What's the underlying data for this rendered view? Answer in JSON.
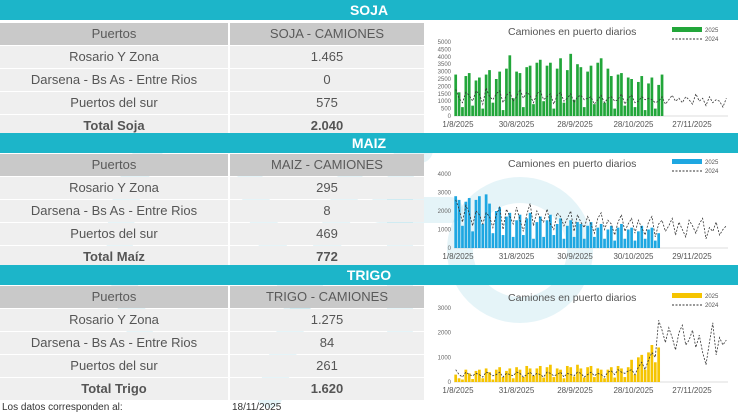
{
  "sections": [
    {
      "key": "soja",
      "banner": "SOJA",
      "header": {
        "col1": "Puertos",
        "col2": "SOJA - CAMIONES"
      },
      "rows": [
        {
          "label": "Rosario Y Zona",
          "value": "1.465"
        },
        {
          "label": "Darsena - Bs As - Entre Rios",
          "value": "0"
        },
        {
          "label": "Puertos del sur",
          "value": "575"
        }
      ],
      "total": {
        "label": "Total Soja",
        "value": "2.040"
      },
      "chart": {
        "title": "Camiones en puerto diarios",
        "legend": [
          "2025",
          "2024"
        ],
        "bar_color": "#22a63a",
        "y_ticks": [
          "0",
          "500",
          "1000",
          "1500",
          "2000",
          "2500",
          "3000",
          "3500",
          "4000",
          "4500",
          "5000"
        ],
        "ymax": 5000,
        "x_ticks": [
          "1/8/2025",
          "30/8/2025",
          "28/9/2025",
          "28/10/2025",
          "27/11/2025"
        ]
      }
    },
    {
      "key": "maiz",
      "banner": "MAIZ",
      "header": {
        "col1": "Puertos",
        "col2": "MAIZ - CAMIONES"
      },
      "rows": [
        {
          "label": "Rosario Y Zona",
          "value": "295"
        },
        {
          "label": "Darsena - Bs As - Entre Rios",
          "value": "8"
        },
        {
          "label": "Puertos del sur",
          "value": "469"
        }
      ],
      "total": {
        "label": "Total Maíz",
        "value": "772"
      },
      "chart": {
        "title": "Camiones en puerto diarios",
        "legend": [
          "2025",
          "2024"
        ],
        "bar_color": "#1ea7e1",
        "y_ticks": [
          "0",
          "1000",
          "2000",
          "3000",
          "4000"
        ],
        "ymax": 4000,
        "x_ticks": [
          "1/8/2025",
          "31/8/2025",
          "30/9/2025",
          "30/10/2025",
          "29/11/2025"
        ]
      }
    },
    {
      "key": "trigo",
      "banner": "TRIGO",
      "header": {
        "col1": "Puertos",
        "col2": "TRIGO - CAMIONES"
      },
      "rows": [
        {
          "label": "Rosario Y Zona",
          "value": "1.275"
        },
        {
          "label": "Darsena - Bs As - Entre Rios",
          "value": "84"
        },
        {
          "label": "Puertos del sur",
          "value": "261"
        }
      ],
      "total": {
        "label": "Total Trigo",
        "value": "1.620"
      },
      "chart": {
        "title": "Camiones en puerto diarios",
        "legend": [
          "2025",
          "2024"
        ],
        "bar_color": "#f5c400",
        "y_ticks": [
          "0",
          "1000",
          "2000",
          "3000"
        ],
        "ymax": 3000,
        "x_ticks": [
          "1/8/2025",
          "31/8/2025",
          "28/9/2025",
          "28/10/2025",
          "27/11/2025"
        ]
      }
    }
  ],
  "footer": {
    "label": "Los datos corresponden al:",
    "date": "18/11/2025"
  },
  "colors": {
    "banner": "#1cb5c9",
    "header_bg": "#c9c9c9",
    "row_bg": "#efefef"
  },
  "chart_data": [
    {
      "type": "bar",
      "title": "Camiones en puerto diarios",
      "ylim": [
        0,
        5000
      ],
      "series": [
        {
          "name": "2025",
          "values": [
            2800,
            1600,
            600,
            2700,
            2900,
            700,
            2400,
            2600,
            500,
            2800,
            3100,
            900,
            2500,
            3000,
            400,
            3200,
            4100,
            1200,
            3000,
            2900,
            600,
            3300,
            3400,
            800,
            3600,
            3800,
            1000,
            3400,
            3600,
            500,
            3200,
            3900,
            900,
            3100,
            4200,
            1100,
            3500,
            3300,
            600,
            3000,
            3400,
            800,
            3600,
            3900,
            900,
            3200,
            2700,
            500,
            2800,
            2900,
            700,
            2600,
            2500,
            600,
            2300,
            2700,
            400,
            2200,
            2600,
            500,
            2100,
            2800
          ]
        },
        {
          "name": "2024",
          "values": [
            1800,
            1200,
            900,
            1600,
            1400,
            1000,
            1700,
            1500,
            800,
            1900,
            1300,
            1100,
            1500,
            1700,
            900,
            1400,
            1600,
            1000,
            1300,
            1800,
            1200,
            1600,
            1400,
            900,
            1500,
            1700,
            1100,
            1300,
            1500,
            800,
            1400,
            1600,
            1000,
            1200,
            1500,
            900,
            1300,
            1400,
            1100,
            1200,
            1300,
            800,
            1100,
            1400,
            900,
            1200,
            1300,
            1000,
            1100,
            1500,
            800,
            1200,
            1400,
            900,
            1000,
            1300,
            1100,
            1200,
            1100,
            900,
            1000,
            1300,
            800,
            1100,
            1400,
            1000,
            1200,
            900,
            1300,
            1100,
            800,
            1500,
            1000,
            1200,
            700,
            1300,
            900,
            1100,
            1000,
            600,
            1200
          ]
        }
      ]
    },
    {
      "type": "bar",
      "title": "Camiones en puerto diarios",
      "ylim": [
        0,
        4000
      ],
      "series": [
        {
          "name": "2025",
          "values": [
            2800,
            2600,
            1200,
            2500,
            2700,
            900,
            2600,
            2800,
            1300,
            2900,
            2400,
            800,
            2000,
            2200,
            700,
            1700,
            1900,
            600,
            1500,
            1800,
            700,
            1600,
            1900,
            500,
            1400,
            1700,
            600,
            1500,
            1800,
            700,
            1300,
            1600,
            500,
            1200,
            1500,
            600,
            1400,
            1300,
            500,
            1200,
            1400,
            600,
            1100,
            1300,
            500,
            1000,
            1200,
            400,
            1100,
            1300,
            500,
            1000,
            1100,
            400,
            900,
            1200,
            500,
            1000,
            1100,
            400,
            800
          ]
        },
        {
          "name": "2024",
          "values": [
            2600,
            2100,
            1400,
            2300,
            1900,
            1200,
            2000,
            1800,
            1300,
            1900,
            1700,
            1100,
            1800,
            2200,
            1000,
            2100,
            1700,
            1300,
            2200,
            1500,
            900,
            1800,
            2400,
            1200,
            2000,
            1600,
            1400,
            2100,
            1300,
            1000,
            1900,
            1700,
            1200,
            1600,
            2000,
            900,
            1800,
            1400,
            1100,
            1700,
            1300,
            800,
            1600,
            1900,
            1000,
            1500,
            1300,
            700,
            1400,
            1800,
            900,
            1300,
            1600,
            800,
            1500,
            1100,
            700,
            1400,
            1700,
            600,
            1300,
            1500,
            900,
            1200,
            1600,
            700,
            1400,
            1000,
            600,
            1500,
            1200,
            800,
            1300,
            1600,
            500,
            1100,
            900,
            1400,
            700,
            1000,
            1200
          ]
        }
      ]
    },
    {
      "type": "bar",
      "title": "Camiones en puerto diarios",
      "ylim": [
        0,
        3000
      ],
      "series": [
        {
          "name": "2025",
          "values": [
            300,
            150,
            100,
            500,
            350,
            120,
            450,
            500,
            150,
            550,
            400,
            100,
            500,
            600,
            200,
            450,
            550,
            150,
            600,
            500,
            200,
            650,
            550,
            250,
            550,
            650,
            180,
            600,
            700,
            200,
            550,
            500,
            150,
            650,
            600,
            220,
            700,
            550,
            180,
            600,
            650,
            200,
            550,
            500,
            150,
            500,
            600,
            180,
            650,
            550,
            200,
            600,
            900,
            300,
            1000,
            1100,
            500,
            1200,
            1500,
            800,
            1400
          ]
        },
        {
          "name": "2024",
          "values": [
            500,
            300,
            200,
            400,
            300,
            250,
            350,
            300,
            200,
            400,
            350,
            250,
            300,
            400,
            200,
            350,
            300,
            250,
            400,
            350,
            200,
            300,
            400,
            250,
            350,
            300,
            200,
            400,
            350,
            250,
            300,
            400,
            200,
            350,
            300,
            250,
            400,
            350,
            200,
            300,
            400,
            250,
            350,
            300,
            200,
            400,
            450,
            300,
            500,
            400,
            350,
            450,
            500,
            300,
            600,
            800,
            500,
            900,
            1200,
            1000,
            2500,
            2100,
            1600,
            2200,
            1800,
            1300,
            2000,
            2300,
            1500,
            1700,
            2100,
            1400,
            1900,
            1200,
            700,
            1600,
            2400,
            1100,
            1800,
            1500,
            1700
          ]
        }
      ]
    }
  ]
}
